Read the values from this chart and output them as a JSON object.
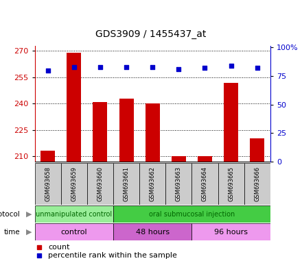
{
  "title": "GDS3909 / 1455437_at",
  "samples": [
    "GSM693658",
    "GSM693659",
    "GSM693660",
    "GSM693661",
    "GSM693662",
    "GSM693663",
    "GSM693664",
    "GSM693665",
    "GSM693666"
  ],
  "counts": [
    213,
    269,
    241,
    243,
    240,
    210,
    210,
    252,
    220
  ],
  "percentile_ranks": [
    80,
    83,
    83,
    83,
    83,
    81,
    82,
    84,
    82
  ],
  "y_min": 207,
  "y_max": 272,
  "y_ticks": [
    210,
    225,
    240,
    255,
    270
  ],
  "y2_ticks": [
    0,
    25,
    50,
    75,
    100
  ],
  "bar_color": "#cc0000",
  "dot_color": "#0000cc",
  "protocol_groups": [
    {
      "label": "unmanipulated control",
      "start": 0,
      "end": 3,
      "color": "#99ee99"
    },
    {
      "label": "oral submucosal injection",
      "start": 3,
      "end": 9,
      "color": "#44cc44"
    }
  ],
  "time_groups": [
    {
      "label": "control",
      "start": 0,
      "end": 3,
      "color": "#ee99ee"
    },
    {
      "label": "48 hours",
      "start": 3,
      "end": 6,
      "color": "#cc66cc"
    },
    {
      "label": "96 hours",
      "start": 6,
      "end": 9,
      "color": "#ee99ee"
    }
  ],
  "legend_items": [
    {
      "color": "#cc0000",
      "label": "count"
    },
    {
      "color": "#0000cc",
      "label": "percentile rank within the sample"
    }
  ],
  "xlabel_color": "#cc0000",
  "ylabel_right_color": "#0000cc",
  "sample_box_color": "#cccccc",
  "percentile_scale_min": 0,
  "percentile_scale_max": 100
}
